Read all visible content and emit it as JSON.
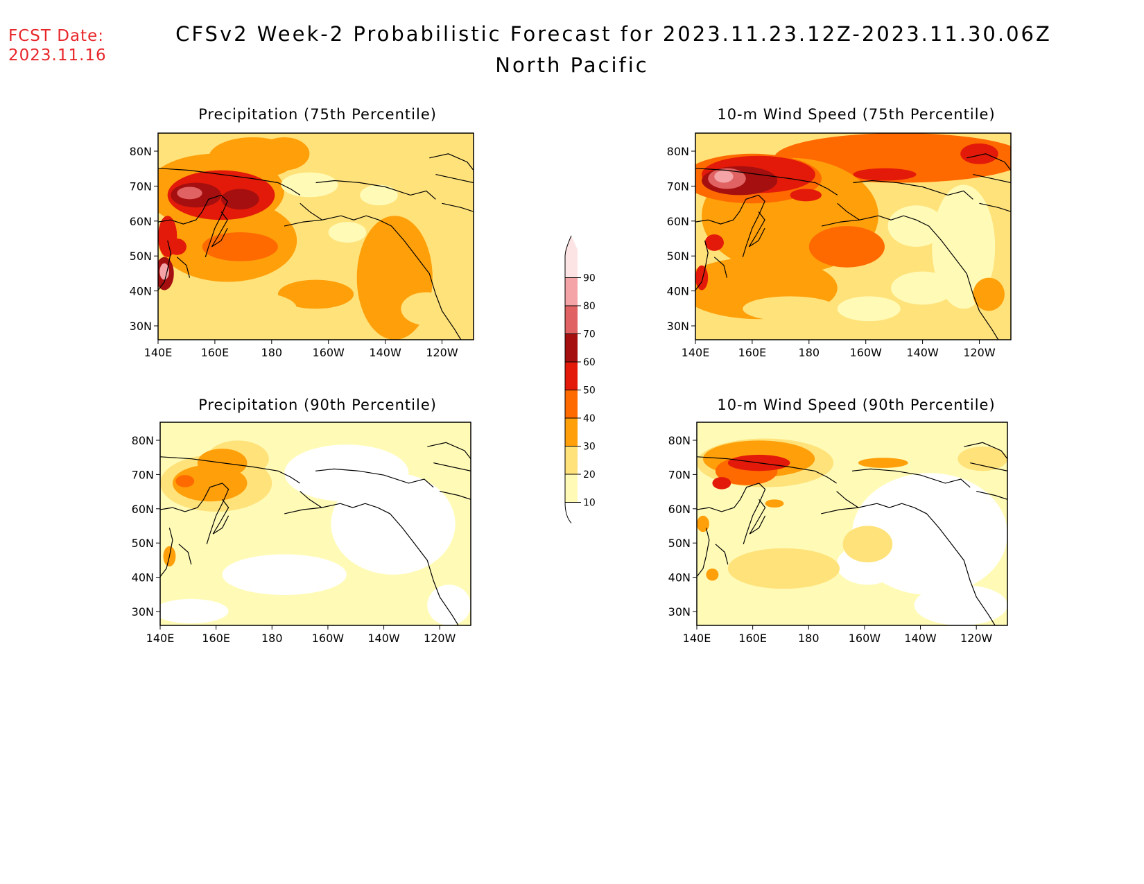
{
  "header": {
    "fcst_label": "FCST Date:",
    "fcst_date": "2023.11.16",
    "title": "CFSv2 Week-2 Probabilistic Forecast for 2023.11.23.12Z-2023.11.30.06Z",
    "subtitle": "North Pacific"
  },
  "panels": [
    {
      "title": "Precipitation (75th Percentile)"
    },
    {
      "title": "10-m Wind Speed (75th Percentile)"
    },
    {
      "title": "Precipitation (90th Percentile)"
    },
    {
      "title": "10-m Wind Speed (90th Percentile)"
    }
  ],
  "axes": {
    "lat_labels": [
      "80N",
      "70N",
      "60N",
      "50N",
      "40N",
      "30N"
    ],
    "lon_labels": [
      "140E",
      "160E",
      "180",
      "160W",
      "140W",
      "120W"
    ]
  },
  "colorbar": {
    "levels": [
      "90",
      "80",
      "70",
      "60",
      "50",
      "40",
      "30",
      "20",
      "10"
    ],
    "colors": [
      "#fde4e4",
      "#f4a3a6",
      "#e06262",
      "#a50f0f",
      "#e31a0a",
      "#ff6a00",
      "#ff9f0a",
      "#ffe27a",
      "#fffbb7"
    ]
  },
  "palette": {
    "c10": "#fffbb7",
    "c20": "#ffe27a",
    "c30": "#ff9f0a",
    "c40": "#ff6a00",
    "c50": "#e31a0a",
    "c60": "#a50f0f",
    "c70": "#e06262",
    "c80": "#f4a3a6",
    "c90": "#fde4e4"
  }
}
